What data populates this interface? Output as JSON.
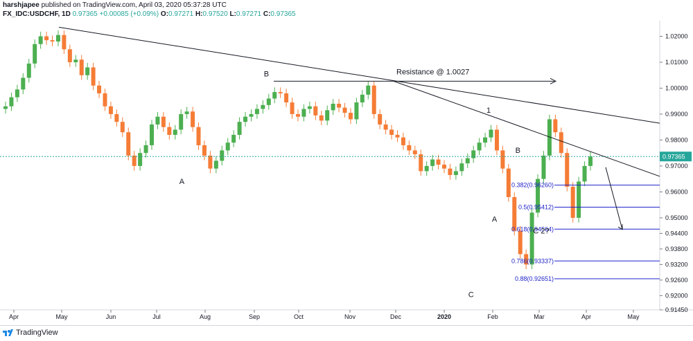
{
  "header": {
    "author": "harshjapee",
    "published_text": "published on TradingView.com, April 03, 2020 05:37:28 UTC",
    "symbol": "FX_IDC:USDCHF, 1D",
    "last": "0.97365",
    "change": "+0.00085 (+0.09%)",
    "o_label": "O:",
    "o_value": "0.97271",
    "h_label": "H:",
    "h_value": "0.97520",
    "l_label": "L:",
    "l_value": "0.97271",
    "c_label": "C:",
    "c_value": "0.97365"
  },
  "footer": {
    "logo_text": "TradingView"
  },
  "colors": {
    "up": "#4caf50",
    "down": "#f57c36",
    "fib": "#1e22c8",
    "price_tag": "#26a69a",
    "trend": "#131722"
  },
  "chart_data": {
    "type": "candlestick",
    "ylim": [
      0.9145,
      1.026
    ],
    "x_tick_labels": [
      "Apr",
      "May",
      "Jun",
      "Jul",
      "Aug",
      "Sep",
      "Oct",
      "Nov",
      "Dec",
      "2020",
      "Feb",
      "Mar",
      "Apr",
      "May"
    ],
    "y_tick_labels": [
      "1.02000",
      "1.01000",
      "1.00000",
      "0.99000",
      "0.98000",
      "0.97000",
      "0.96000",
      "0.95000",
      "0.94400",
      "0.93800",
      "0.93200",
      "0.92600",
      "0.92000",
      "0.91450"
    ],
    "current_price_label": "0.97365",
    "current_price": 0.97365,
    "series_close": [
      0.993,
      0.9965,
      0.9995,
      1.004,
      1.0095,
      1.017,
      1.02,
      1.0185,
      1.018,
      1.0205,
      1.015,
      1.01,
      1.011,
      1.005,
      1.008,
      1.001,
      0.998,
      0.993,
      0.99,
      0.987,
      0.983,
      0.974,
      0.97,
      0.975,
      0.978,
      0.986,
      0.989,
      0.985,
      0.982,
      0.984,
      0.99,
      0.991,
      0.985,
      0.978,
      0.974,
      0.969,
      0.972,
      0.976,
      0.979,
      0.982,
      0.987,
      0.989,
      0.99,
      0.992,
      0.9935,
      0.996,
      0.9985,
      0.998,
      0.9945,
      0.99,
      0.989,
      0.992,
      0.993,
      0.9895,
      0.9875,
      0.9915,
      0.994,
      0.9925,
      0.9905,
      0.988,
      0.9945,
      0.9975,
      1.001,
      0.99,
      0.986,
      0.984,
      0.982,
      0.981,
      0.978,
      0.976,
      0.9745,
      0.968,
      0.97,
      0.9725,
      0.9705,
      0.969,
      0.9665,
      0.968,
      0.971,
      0.973,
      0.976,
      0.979,
      0.981,
      0.984,
      0.976,
      0.969,
      0.958,
      0.945,
      0.936,
      0.932,
      0.952,
      0.965,
      0.974,
      0.988,
      0.983,
      0.975,
      0.962,
      0.95,
      0.964,
      0.97,
      0.97365
    ],
    "wave_labels": [
      {
        "text": "A",
        "date_index": 0.26,
        "price": 0.963
      },
      {
        "text": "B",
        "date_index": 0.44,
        "price": 1.0045
      },
      {
        "text": "C",
        "date_index": 0.79,
        "price": 0.9195
      },
      {
        "text": "1",
        "date_index": 0.82,
        "price": 0.9905
      },
      {
        "text": "A",
        "date_index": 0.83,
        "price": 0.9485
      },
      {
        "text": "B",
        "date_index": 0.87,
        "price": 0.975
      },
      {
        "text": "C 2?",
        "date_index": 0.91,
        "price": 0.944
      }
    ],
    "annotations": [
      {
        "text": "Resistance @ 1.0027",
        "price": 1.0027
      }
    ],
    "fib_levels": [
      {
        "label": "0.382(0.96260)",
        "price": 0.9626
      },
      {
        "label": "0.5(0.95412)",
        "price": 0.95412
      },
      {
        "label": "0.618(0.94564)",
        "price": 0.94564
      },
      {
        "label": "0.786(0.93337)",
        "price": 0.93337
      },
      {
        "label": "0.88(0.92651)",
        "price": 0.92651
      }
    ]
  }
}
